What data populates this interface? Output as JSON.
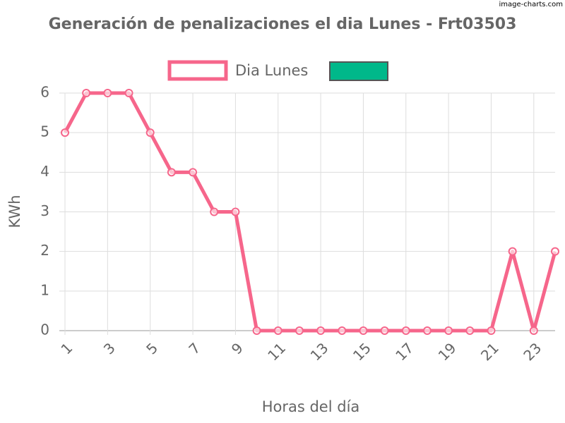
{
  "chart_data": {
    "type": "line",
    "title": "Generación de penalizaciones el dia Lunes - Frt03503",
    "watermark": "image-charts.com",
    "x_label": "Horas del día",
    "y_label": "KWh",
    "categories": [
      "1",
      null,
      "3",
      null,
      "5",
      null,
      "7",
      null,
      "9",
      null,
      "11",
      null,
      "13",
      null,
      "15",
      null,
      "17",
      null,
      "19",
      null,
      "21",
      null,
      "23",
      null
    ],
    "series": [
      {
        "name": "Dia Lunes",
        "color": "#f6668b",
        "values": [
          5,
          6,
          6,
          6,
          5,
          4,
          4,
          3,
          3,
          0,
          0,
          0,
          0,
          0,
          0,
          0,
          0,
          0,
          0,
          0,
          0,
          2,
          0,
          2
        ]
      },
      {
        "name": null,
        "color": "#00b88a",
        "values": [
          null,
          null,
          null,
          null,
          null,
          null,
          null,
          null,
          null,
          null,
          null,
          null,
          null,
          null,
          null,
          null,
          null,
          null,
          null,
          null,
          null,
          null,
          null,
          null
        ]
      }
    ],
    "ylim": [
      0,
      6
    ],
    "yticks": [
      0,
      1,
      2,
      3,
      4,
      5,
      6
    ],
    "grid": true
  }
}
